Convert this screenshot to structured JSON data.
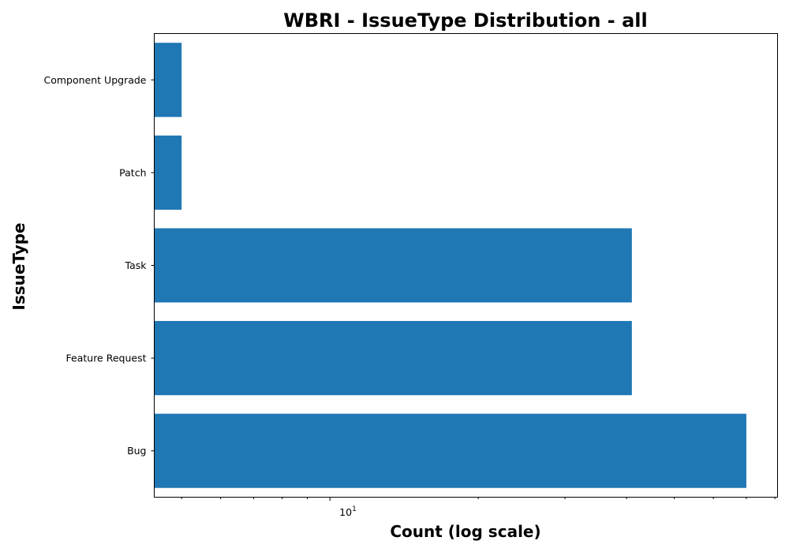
{
  "chart_data": {
    "type": "bar",
    "orientation": "horizontal",
    "title": "WBRI - IssueType Distribution - all",
    "xlabel": "Count (log scale)",
    "ylabel": "IssueType",
    "xscale": "log",
    "xlim": [
      4.4,
      81
    ],
    "x_tick_label_base": "10",
    "x_tick_label_exp": "1",
    "categories": [
      "Component Upgrade",
      "Patch",
      "Task",
      "Feature Request",
      "Bug"
    ],
    "values": [
      5,
      5,
      41,
      41,
      70
    ],
    "color": "#1f77b4",
    "grid": false,
    "legend": "none"
  }
}
